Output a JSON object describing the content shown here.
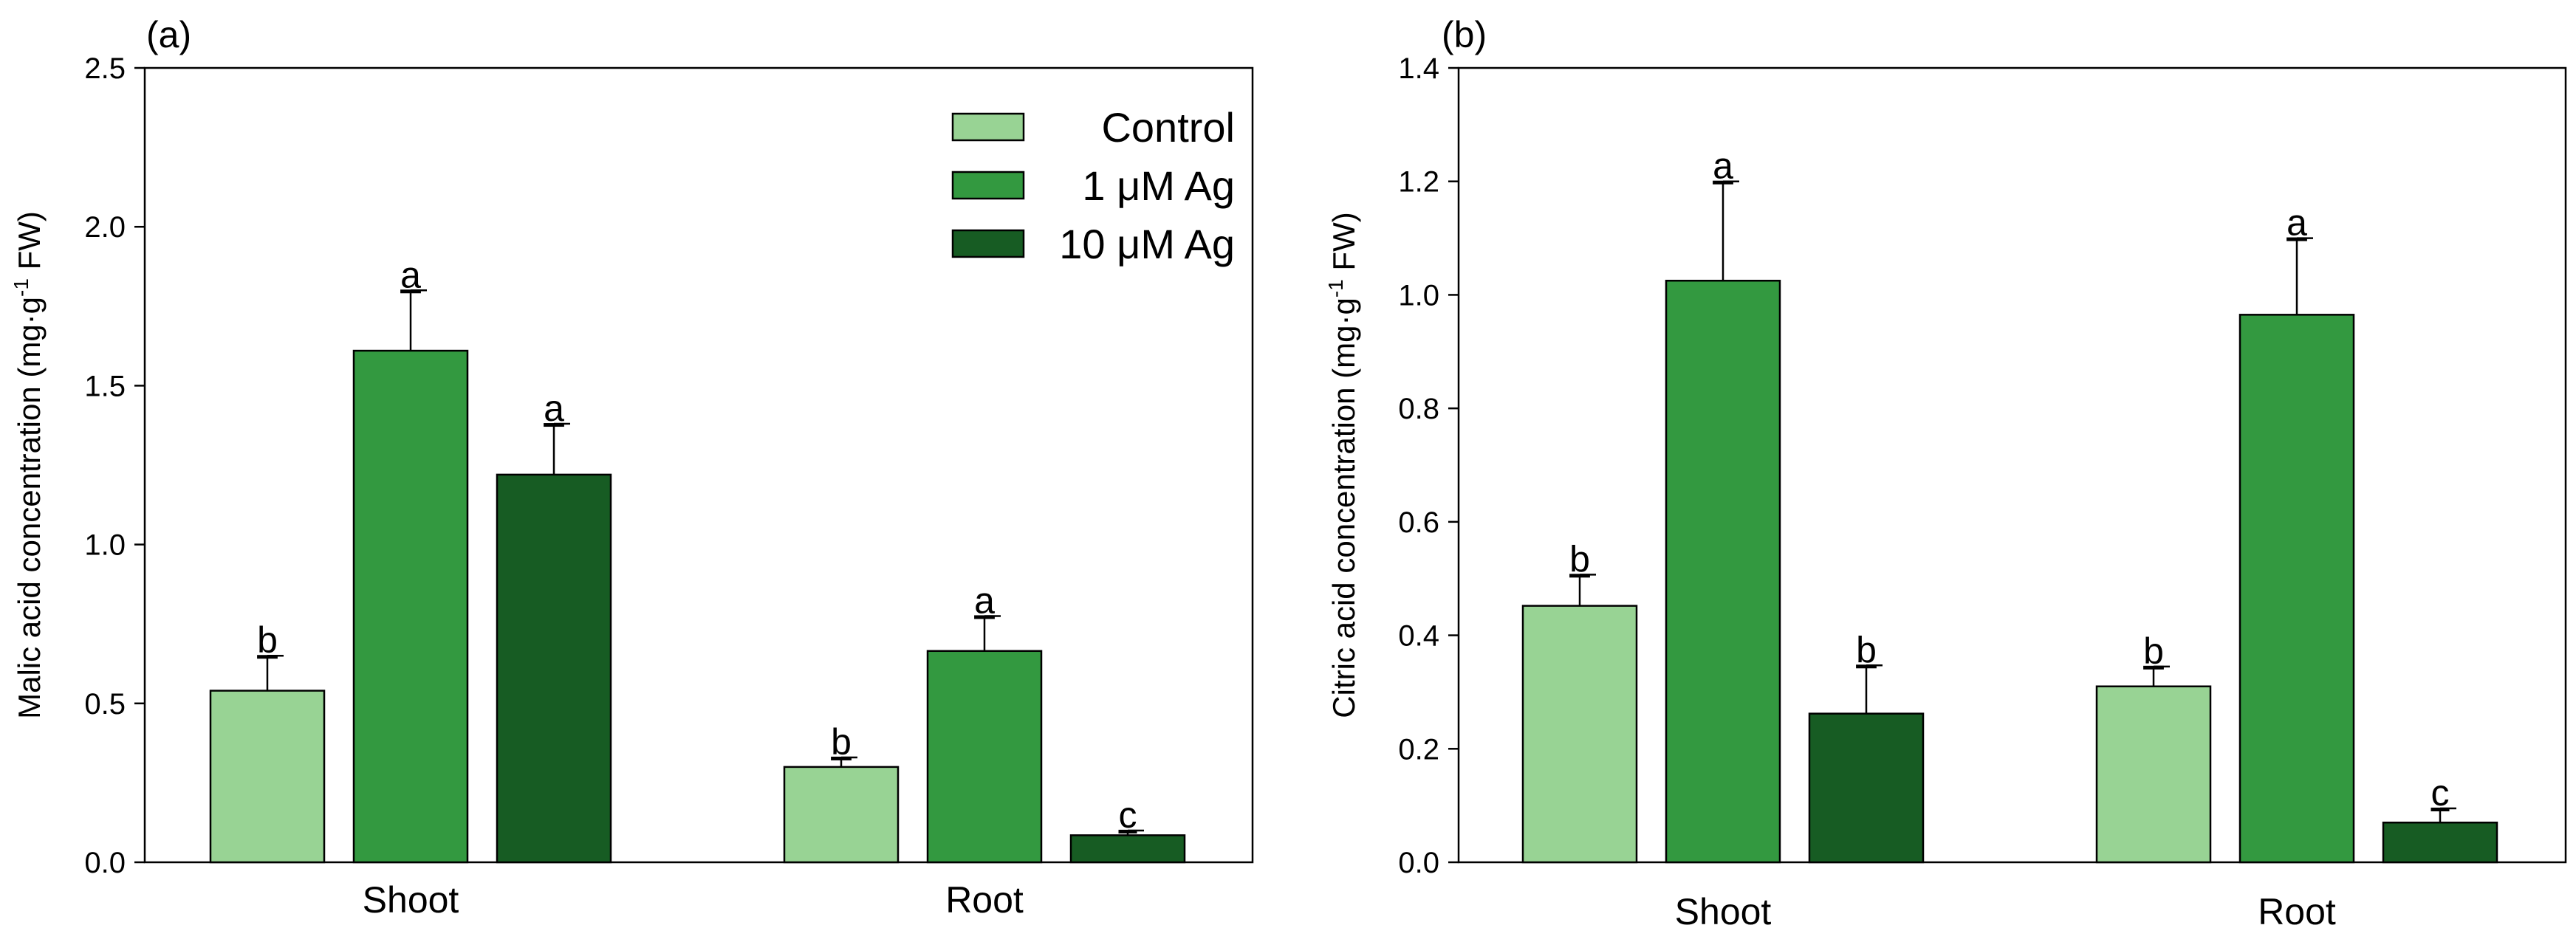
{
  "chart_data": [
    {
      "type": "bar",
      "panel_label": "(a)",
      "ylabel_main": "Malic acid concentration  (mg·g",
      "ylabel_sup": "-1",
      "ylabel_tail": " FW)",
      "xlabel": "",
      "ylim": [
        0,
        2.5
      ],
      "yticks": [
        "0.0",
        "0.5",
        "1.0",
        "1.5",
        "2.0",
        "2.5"
      ],
      "categories": [
        "Shoot",
        "Root"
      ],
      "series": [
        {
          "name": "Control",
          "values": [
            0.54,
            0.3
          ],
          "errors": [
            0.11,
            0.03
          ],
          "letters": [
            "b",
            "b"
          ]
        },
        {
          "name": "1 μM Ag",
          "values": [
            1.61,
            0.665
          ],
          "errors": [
            0.19,
            0.11
          ],
          "letters": [
            "a",
            "a"
          ]
        },
        {
          "name": "10 μM Ag",
          "values": [
            1.22,
            0.085
          ],
          "errors": [
            0.16,
            0.015
          ],
          "letters": [
            "a",
            "c"
          ]
        }
      ],
      "legend": {
        "position": "top-right",
        "entries": [
          "Control",
          "1 μM Ag",
          "10 μM Ag"
        ]
      }
    },
    {
      "type": "bar",
      "panel_label": "(b)",
      "ylabel_main": "Citric acid concentration  (mg·g",
      "ylabel_sup": "-1",
      "ylabel_tail": " FW)",
      "xlabel": "",
      "ylim": [
        0,
        1.4
      ],
      "yticks": [
        "0.0",
        "0.2",
        "0.4",
        "0.6",
        "0.8",
        "1.0",
        "1.2",
        "1.4"
      ],
      "categories": [
        "Shoot",
        "Root"
      ],
      "series": [
        {
          "name": "Control",
          "values": [
            0.452,
            0.31
          ],
          "errors": [
            0.055,
            0.035
          ],
          "letters": [
            "b",
            "b"
          ]
        },
        {
          "name": "1 μM Ag",
          "values": [
            1.025,
            0.965
          ],
          "errors": [
            0.175,
            0.135
          ],
          "letters": [
            "a",
            "a"
          ]
        },
        {
          "name": "10 μM Ag",
          "values": [
            0.262,
            0.07
          ],
          "errors": [
            0.085,
            0.025
          ],
          "letters": [
            "b",
            "c"
          ]
        }
      ]
    }
  ],
  "colors": {
    "control": "#98d394",
    "ag1": "#339940",
    "ag10": "#175c23",
    "outline": "#000000"
  }
}
